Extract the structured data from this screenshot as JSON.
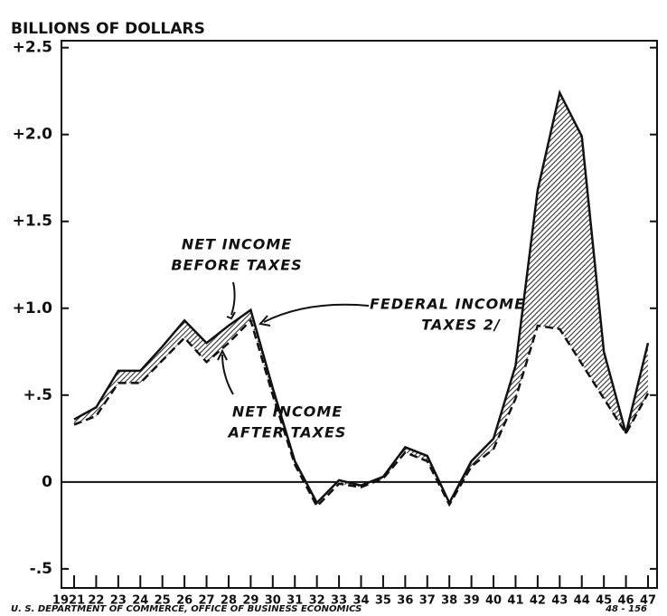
{
  "chart_data": {
    "type": "line",
    "title": "BILLIONS OF DOLLARS",
    "categories": [
      "1921",
      "22",
      "23",
      "24",
      "25",
      "26",
      "27",
      "28",
      "29",
      "30",
      "31",
      "32",
      "33",
      "34",
      "35",
      "36",
      "37",
      "38",
      "39",
      "40",
      "41",
      "42",
      "43",
      "44",
      "45",
      "46",
      "47"
    ],
    "series": [
      {
        "color": "#111111",
        "style": "solid",
        "values": [
          0.36,
          0.43,
          0.64,
          0.64,
          0.78,
          0.93,
          0.8,
          0.9,
          0.99,
          0.54,
          0.12,
          -0.12,
          0.01,
          -0.02,
          0.03,
          0.2,
          0.15,
          -0.12,
          0.12,
          0.25,
          0.67,
          1.68,
          2.24,
          1.99,
          0.75,
          0.28,
          0.8
        ]
      },
      {
        "color": "#111111",
        "style": "dashed",
        "values": [
          0.33,
          0.38,
          0.57,
          0.57,
          0.7,
          0.83,
          0.69,
          0.8,
          0.93,
          0.5,
          0.1,
          -0.14,
          -0.01,
          -0.03,
          0.02,
          0.17,
          0.12,
          -0.13,
          0.09,
          0.19,
          0.48,
          0.9,
          0.88,
          0.68,
          0.48,
          0.28,
          0.51
        ]
      }
    ],
    "ylim": [
      -0.61,
      2.54
    ],
    "yticks": [
      {
        "value": 2.5,
        "label": "+2.5"
      },
      {
        "value": 2.0,
        "label": "+2.0"
      },
      {
        "value": 1.5,
        "label": "+1.5"
      },
      {
        "value": 1.0,
        "label": "+1.0"
      },
      {
        "value": 0.5,
        "label": "+.5"
      },
      0,
      {
        "value": -0.5,
        "label": "-.5"
      }
    ],
    "annotations": [
      {
        "text": [
          "NET INCOME",
          "BEFORE TAXES"
        ]
      },
      {
        "text": [
          "NET INCOME",
          "AFTER TAXES"
        ]
      },
      {
        "text": [
          "FEDERAL INCOME",
          "TAXES 2/"
        ]
      }
    ],
    "source": "U. S. DEPARTMENT OF COMMERCE, OFFICE OF BUSINESS ECONOMICS",
    "code": "48 - 156"
  }
}
